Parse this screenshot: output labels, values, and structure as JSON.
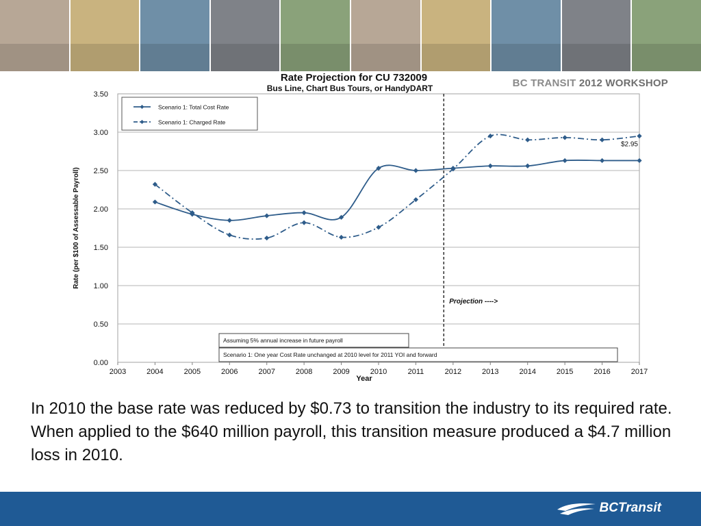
{
  "header": {
    "photos": [
      "photo-woman-phone",
      "photo-kids-table",
      "photo-bus-passengers",
      "photo-bus-drivers",
      "photo-bus-stop"
    ],
    "workshop_text": "BC TRANSIT",
    "workshop_year": "2012 WORKSHOP"
  },
  "chart_data": {
    "type": "line",
    "title": "Rate Projection  for CU 732009",
    "subtitle": "Bus Line, Chart Bus Tours, or HandyDART",
    "xlabel": "Year",
    "ylabel": "Rate (per $100 of Assessable Payroll)",
    "xlim": [
      2003,
      2017
    ],
    "ylim": [
      0,
      3.5
    ],
    "x_ticks": [
      "2003",
      "2004",
      "2005",
      "2006",
      "2007",
      "2008",
      "2009",
      "2010",
      "2011",
      "2012",
      "2013",
      "2014",
      "2015",
      "2016",
      "2017"
    ],
    "y_ticks": [
      "0.00",
      "0.50",
      "1.00",
      "1.50",
      "2.00",
      "2.50",
      "3.00",
      "3.50"
    ],
    "grid": true,
    "legend_position": "top-left",
    "series": [
      {
        "name": "Scenario 1: Total Cost Rate",
        "style": "solid",
        "color": "#2e5c8a",
        "x": [
          2004,
          2005,
          2006,
          2007,
          2008,
          2009,
          2010,
          2011,
          2012,
          2013,
          2014,
          2015,
          2016,
          2017
        ],
        "values": [
          2.09,
          1.93,
          1.85,
          1.91,
          1.95,
          1.89,
          2.53,
          2.5,
          2.53,
          2.56,
          2.56,
          2.63,
          2.63,
          2.63
        ]
      },
      {
        "name": "Scenario 1: Charged Rate",
        "style": "dashdot",
        "color": "#2e5c8a",
        "x": [
          2004,
          2005,
          2006,
          2007,
          2008,
          2009,
          2010,
          2011,
          2012,
          2013,
          2014,
          2015,
          2016,
          2017
        ],
        "values": [
          2.32,
          1.95,
          1.66,
          1.62,
          1.82,
          1.63,
          1.76,
          2.12,
          2.52,
          2.95,
          2.9,
          2.93,
          2.9,
          2.95
        ]
      }
    ],
    "projection_line_x": 2011.75,
    "annotations": {
      "projection": "Projection ---->",
      "final_value": "$2.95",
      "note1": "Assuming 5% annual increase in future payroll",
      "note2": "Scenario 1: One year Cost Rate unchanged at 2010 level for 2011 YOI and forward"
    }
  },
  "caption": "In 2010 the base rate was reduced by $0.73 to transition the industry to its required rate. When applied to the $640 million payroll, this transition measure produced a $4.7 million loss in 2010.",
  "footer": {
    "logo_text": "BCTransit",
    "color": "#1f5a95"
  }
}
